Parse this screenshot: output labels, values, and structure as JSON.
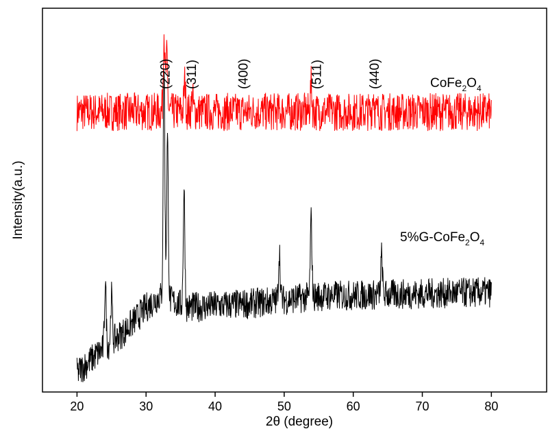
{
  "chart_data": {
    "type": "line",
    "xlabel": "2θ (degree)",
    "ylabel": "Intensity(a.u.)",
    "xlim": [
      15,
      88
    ],
    "x_ticks": [
      "20",
      "30",
      "40",
      "50",
      "60",
      "70",
      "80"
    ],
    "y_ticks_labeled": false,
    "grid": false,
    "series": [
      {
        "name": "CoFe2O4",
        "color": "#ff0000",
        "x_range": [
          20,
          80
        ],
        "baseline_level": 0.73,
        "noise_amplitude": 0.05,
        "peaks": [
          {
            "x": 32.6,
            "height": 0.21
          },
          {
            "x": 33.0,
            "height": 0.14
          },
          {
            "x": 35.6,
            "height": 0.08
          },
          {
            "x": 36.7,
            "height": 0.04
          },
          {
            "x": 53.9,
            "height": 0.07
          },
          {
            "x": 62.9,
            "height": 0.05
          }
        ]
      },
      {
        "name": "5%G-CoFe2O4",
        "color": "#000000",
        "x_range": [
          20,
          80
        ],
        "baseline_points": [
          [
            20,
            0.05
          ],
          [
            23,
            0.1
          ],
          [
            27,
            0.16
          ],
          [
            30,
            0.22
          ],
          [
            32,
            0.25
          ],
          [
            36,
            0.22
          ],
          [
            45,
            0.23
          ],
          [
            55,
            0.25
          ],
          [
            80,
            0.26
          ]
        ],
        "noise_amplitude": 0.04,
        "peaks": [
          {
            "x": 24.1,
            "height": 0.17
          },
          {
            "x": 25.0,
            "height": 0.12
          },
          {
            "x": 32.6,
            "height": 0.6
          },
          {
            "x": 33.1,
            "height": 0.42
          },
          {
            "x": 35.5,
            "height": 0.3
          },
          {
            "x": 49.3,
            "height": 0.13
          },
          {
            "x": 53.9,
            "height": 0.2
          },
          {
            "x": 64.1,
            "height": 0.1
          }
        ]
      }
    ],
    "peak_annotations": [
      {
        "label": "(220)",
        "x": 32.8
      },
      {
        "label": "(311)",
        "x": 36.6
      },
      {
        "label": "(400)",
        "x": 44.1
      },
      {
        "label": "(511)",
        "x": 54.7
      },
      {
        "label": "(440)",
        "x": 63.1
      }
    ],
    "series_labels": {
      "cofe2o4": {
        "prefix": "CoFe",
        "sub1": "2",
        "mid": "O",
        "sub2": "4"
      },
      "g_cofe2o4": {
        "prefix": "5%G-CoFe",
        "sub1": "2",
        "mid": "O",
        "sub2": "4"
      }
    }
  }
}
